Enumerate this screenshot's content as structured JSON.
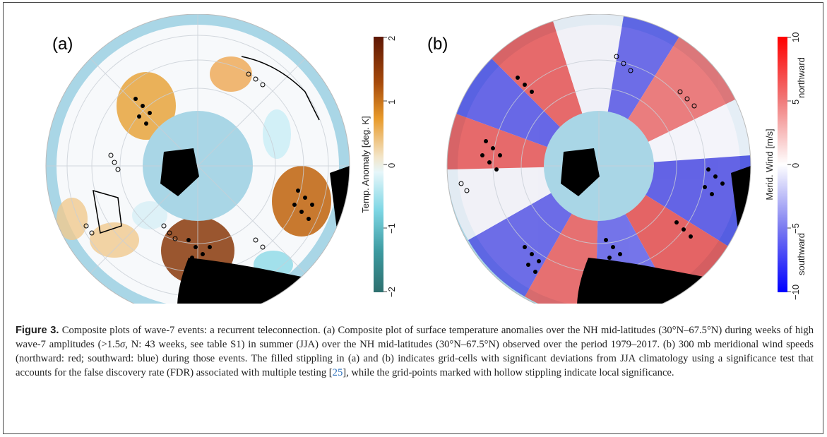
{
  "figure": {
    "panel_a": {
      "label": "(a)",
      "colorbar": {
        "title": "Temp. Anomaly [deg. K]",
        "ticks": [
          "2",
          "1",
          "0",
          "−1",
          "−2"
        ],
        "colors": [
          "#5e1705",
          "#a64a0b",
          "#e89a2a",
          "#f3e5c8",
          "#e6f6fa",
          "#7dd6e4",
          "#3c9aa0",
          "#2e6f6e"
        ]
      }
    },
    "panel_b": {
      "label": "(b)",
      "colorbar": {
        "title": "Merid. Wind [m/s]",
        "top_label": "northward",
        "bottom_label": "southward",
        "ticks": [
          "10",
          "5",
          "0",
          "−5",
          "−10"
        ],
        "colors": [
          "#ff0000",
          "#f07a7a",
          "#ffffff",
          "#7a7af0",
          "#0000ff"
        ]
      }
    }
  },
  "caption": {
    "figure_label": "Figure 3.",
    "text_1": " Composite plots of wave-7 events: a recurrent teleconnection. (a) Composite plot of surface temperature anomalies over the NH mid-latitudes (30°N–67.5°N) during weeks of high wave-7 amplitudes (>1.5",
    "sigma": "σ",
    "text_2": ", N: 43 weeks, see table S1) in summer (JJA) over the NH mid-latitudes (30°N–67.5°N) observed over the period 1979–2017. (b) 300 mb meridional wind speeds (northward: red; southward: blue) during those events. The filled stippling in (a) and (b) indicates grid-cells with significant deviations from JJA climatology using a significance test that accounts for the false discovery rate (FDR) associated with multiple testing [",
    "ref": "25",
    "text_3": "], while the grid-points marked with hollow stippling indicate local significance."
  }
}
